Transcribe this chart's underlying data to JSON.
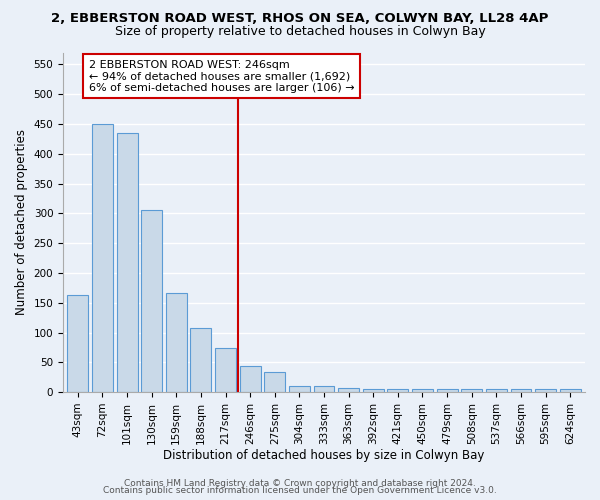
{
  "title_line1": "2, EBBERSTON ROAD WEST, RHOS ON SEA, COLWYN BAY, LL28 4AP",
  "title_line2": "Size of property relative to detached houses in Colwyn Bay",
  "xlabel": "Distribution of detached houses by size in Colwyn Bay",
  "ylabel": "Number of detached properties",
  "categories": [
    "43sqm",
    "72sqm",
    "101sqm",
    "130sqm",
    "159sqm",
    "188sqm",
    "217sqm",
    "246sqm",
    "275sqm",
    "304sqm",
    "333sqm",
    "363sqm",
    "392sqm",
    "421sqm",
    "450sqm",
    "479sqm",
    "508sqm",
    "537sqm",
    "566sqm",
    "595sqm",
    "624sqm"
  ],
  "values": [
    163,
    450,
    435,
    305,
    167,
    107,
    74,
    44,
    33,
    11,
    11,
    7,
    6,
    5,
    5,
    5,
    5,
    5,
    5,
    5,
    5
  ],
  "bar_color": "#c9d9e8",
  "bar_edge_color": "#5b9bd5",
  "red_line_index": 7,
  "annotation_line1": "2 EBBERSTON ROAD WEST: 246sqm",
  "annotation_line2": "← 94% of detached houses are smaller (1,692)",
  "annotation_line3": "6% of semi-detached houses are larger (106) →",
  "annotation_box_color": "#ffffff",
  "annotation_box_edge_color": "#cc0000",
  "ylim": [
    0,
    570
  ],
  "yticks": [
    0,
    50,
    100,
    150,
    200,
    250,
    300,
    350,
    400,
    450,
    500,
    550
  ],
  "footer_line1": "Contains HM Land Registry data © Crown copyright and database right 2024.",
  "footer_line2": "Contains public sector information licensed under the Open Government Licence v3.0.",
  "background_color": "#eaf0f8",
  "plot_background_color": "#eaf0f8",
  "grid_color": "#ffffff",
  "title_fontsize": 9.5,
  "subtitle_fontsize": 9,
  "tick_fontsize": 7.5,
  "axis_label_fontsize": 8.5,
  "footer_fontsize": 6.5
}
